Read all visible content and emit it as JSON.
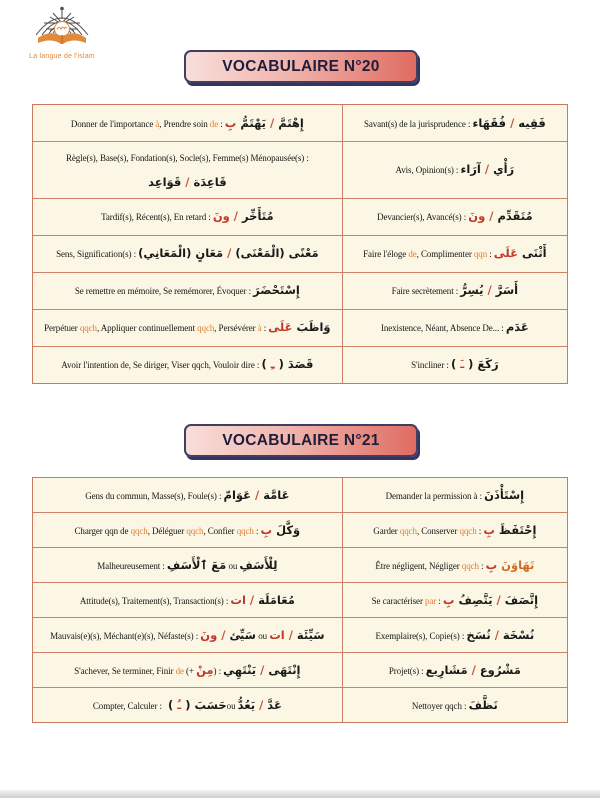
{
  "logo": {
    "caption": "La langue de l'islam"
  },
  "banners": [
    {
      "label": "VOCABULAIRE N°20"
    },
    {
      "label": "VOCABULAIRE N°21"
    }
  ],
  "colors": {
    "banner_gradient_start": "#f9ded9",
    "banner_gradient_end": "#e0685e",
    "banner_border": "#3f3f66",
    "table_border": "#c9795d",
    "cell_background": "#fbf7e4",
    "french_accent_orange": "#dd7e3b",
    "arabic_red": "#c0392b",
    "logo_orange": "#e08a3c"
  },
  "tables": [
    {
      "title_ref": "VOCABULAIRE N°20",
      "rows": [
        {
          "left": [
            {
              "t": "Donner de l'importance ",
              "s": "fr"
            },
            {
              "t": "à",
              "s": "or"
            },
            {
              "t": ", Prendre soin ",
              "s": "fr"
            },
            {
              "t": "de",
              "s": "or"
            },
            {
              "t": " : ",
              "s": "fr"
            },
            {
              "run": [
                {
                  "t": "إِهْتَمَّ",
                  "s": "ar"
                },
                {
                  "t": " / ",
                  "s": "sep"
                },
                {
                  "t": "يَهْتَمُّ ",
                  "s": "ar"
                },
                {
                  "t": "بِ",
                  "s": "arr"
                }
              ]
            }
          ],
          "right": [
            {
              "t": "Savant(s) de la jurisprudence : ",
              "s": "fr"
            },
            {
              "run": [
                {
                  "t": "فَقِيه",
                  "s": "ar"
                },
                {
                  "t": " / ",
                  "s": "sep"
                },
                {
                  "t": "فُقَهَاء",
                  "s": "ar"
                }
              ]
            }
          ]
        },
        {
          "left": [
            {
              "t": "Règle(s), Base(s), Fondation(s), Socle(s), Femme(s) Ménopausée(s) :",
              "s": "fr"
            },
            {
              "br": true
            },
            {
              "run": [
                {
                  "t": "قَاعِدَة",
                  "s": "ar"
                },
                {
                  "t": " / ",
                  "s": "sep"
                },
                {
                  "t": "قَوَاعِد",
                  "s": "ar"
                }
              ]
            }
          ],
          "right": [
            {
              "t": "Avis, Opinion(s) : ",
              "s": "fr"
            },
            {
              "run": [
                {
                  "t": "رَأْي",
                  "s": "ar"
                },
                {
                  "t": " / ",
                  "s": "sep"
                },
                {
                  "t": "آرَاء",
                  "s": "ar"
                }
              ]
            }
          ]
        },
        {
          "left": [
            {
              "t": "Tardif(s), Récent(s), En retard : ",
              "s": "fr"
            },
            {
              "run": [
                {
                  "t": "مُتَأَخِّر",
                  "s": "ar"
                },
                {
                  "t": " / ",
                  "s": "sep"
                },
                {
                  "t": "ونَ",
                  "s": "arr"
                }
              ]
            }
          ],
          "right": [
            {
              "t": "Devancier(s), Avancé(s) : ",
              "s": "fr"
            },
            {
              "run": [
                {
                  "t": "مُتَقَدِّم",
                  "s": "ar"
                },
                {
                  "t": " / ",
                  "s": "sep"
                },
                {
                  "t": "ونَ",
                  "s": "arr"
                }
              ]
            }
          ]
        },
        {
          "left": [
            {
              "t": "Sens, Signification(s) : ",
              "s": "fr"
            },
            {
              "run": [
                {
                  "t": "مَعْنًى (الْمَعْنَى)",
                  "s": "ar"
                },
                {
                  "t": " / ",
                  "s": "sep"
                },
                {
                  "t": "مَعَانٍ (الْمَعَانِي)",
                  "s": "ar"
                }
              ]
            }
          ],
          "right": [
            {
              "t": "Faire l'éloge ",
              "s": "fr"
            },
            {
              "t": "de",
              "s": "or"
            },
            {
              "t": ", Complimenter ",
              "s": "fr"
            },
            {
              "t": "qqn",
              "s": "or"
            },
            {
              "t": " : ",
              "s": "fr"
            },
            {
              "run": [
                {
                  "t": "أَثْنَى ",
                  "s": "ar"
                },
                {
                  "t": "عَلَى",
                  "s": "arr"
                }
              ]
            }
          ]
        },
        {
          "left": [
            {
              "t": "Se remettre en mémoire, Se remémorer, Évoquer : ",
              "s": "fr"
            },
            {
              "run": [
                {
                  "t": "إِسْتَحْضَرَ",
                  "s": "ar"
                }
              ]
            }
          ],
          "right": [
            {
              "t": "Faire secrètement : ",
              "s": "fr"
            },
            {
              "run": [
                {
                  "t": "أَسَرَّ",
                  "s": "ar"
                },
                {
                  "t": " / ",
                  "s": "sep"
                },
                {
                  "t": "يُسِرُّ",
                  "s": "ar"
                }
              ]
            }
          ]
        },
        {
          "left": [
            {
              "t": "Perpétuer ",
              "s": "fr"
            },
            {
              "t": "qqch",
              "s": "or"
            },
            {
              "t": ", Appliquer continuellement ",
              "s": "fr"
            },
            {
              "t": "qqch",
              "s": "or"
            },
            {
              "t": ", Persévérer ",
              "s": "fr"
            },
            {
              "t": "à",
              "s": "or"
            },
            {
              "t": " : ",
              "s": "fr"
            },
            {
              "run": [
                {
                  "t": "وَاظَبَ ",
                  "s": "ar"
                },
                {
                  "t": "عَلَى",
                  "s": "arr"
                }
              ]
            }
          ],
          "right": [
            {
              "t": "Inexistence, Néant, Absence De... : ",
              "s": "fr"
            },
            {
              "run": [
                {
                  "t": "عَدَم",
                  "s": "ar"
                }
              ]
            }
          ]
        },
        {
          "left": [
            {
              "t": "Avoir l'intention de, Se diriger, Viser qqch, Vouloir dire : ",
              "s": "fr"
            },
            {
              "run": [
                {
                  "t": "قَصَدَ",
                  "s": "ar"
                },
                {
                  "t": " ( ",
                  "s": "ar"
                },
                {
                  "t": "ـِ",
                  "s": "arr"
                },
                {
                  "t": " ) ",
                  "s": "ar"
                }
              ]
            }
          ],
          "right": [
            {
              "t": "S'incliner : ",
              "s": "fr"
            },
            {
              "run": [
                {
                  "t": "رَكَعَ",
                  "s": "ar"
                },
                {
                  "t": " ( ",
                  "s": "ar"
                },
                {
                  "t": "ـَ",
                  "s": "arr"
                },
                {
                  "t": " ) ",
                  "s": "ar"
                }
              ]
            }
          ]
        }
      ]
    },
    {
      "title_ref": "VOCABULAIRE N°21",
      "rows": [
        {
          "left": [
            {
              "t": "Gens du commun, Masse(s), Foule(s) : ",
              "s": "fr"
            },
            {
              "run": [
                {
                  "t": "عَامَّة",
                  "s": "ar"
                },
                {
                  "t": " / ",
                  "s": "sep"
                },
                {
                  "t": "عَوَامّ",
                  "s": "ar"
                }
              ]
            }
          ],
          "right": [
            {
              "t": "Demander la permission à : ",
              "s": "fr"
            },
            {
              "run": [
                {
                  "t": "إِسْتَأْذَنَ",
                  "s": "ar"
                }
              ]
            }
          ]
        },
        {
          "left": [
            {
              "t": "Charger qqn de ",
              "s": "fr"
            },
            {
              "t": "qqch",
              "s": "or"
            },
            {
              "t": ", Déléguer ",
              "s": "fr"
            },
            {
              "t": "qqch",
              "s": "or"
            },
            {
              "t": ", Confier ",
              "s": "fr"
            },
            {
              "t": "qqch",
              "s": "or"
            },
            {
              "t": " : ",
              "s": "fr"
            },
            {
              "run": [
                {
                  "t": "وَكَّلَ ",
                  "s": "ar"
                },
                {
                  "t": "بِ",
                  "s": "arr"
                }
              ]
            }
          ],
          "right": [
            {
              "t": "Garder ",
              "s": "fr"
            },
            {
              "t": "qqch",
              "s": "or"
            },
            {
              "t": ", Conserver ",
              "s": "fr"
            },
            {
              "t": "qqch",
              "s": "or"
            },
            {
              "t": " : ",
              "s": "fr"
            },
            {
              "run": [
                {
                  "t": "إِحْتَفَظَ ",
                  "s": "ar"
                },
                {
                  "t": "بِ",
                  "s": "arr"
                }
              ]
            }
          ]
        },
        {
          "left": [
            {
              "t": "Malheureusement : ",
              "s": "fr"
            },
            {
              "run": [
                {
                  "t": "مَعَ ٱلْأَسَفِ",
                  "s": "ar"
                }
              ]
            },
            {
              "t": " ou ",
              "s": "fr"
            },
            {
              "run": [
                {
                  "t": "لِلْأَسَفِ",
                  "s": "ar"
                }
              ]
            }
          ],
          "right": [
            {
              "t": "Être négligent, Négliger ",
              "s": "fr"
            },
            {
              "t": "qqch",
              "s": "or"
            },
            {
              "t": " : ",
              "s": "fr"
            },
            {
              "run": [
                {
                  "t": "تَهَاوَنَ ",
                  "s": "aro"
                },
                {
                  "t": "بِ",
                  "s": "arr"
                }
              ]
            }
          ]
        },
        {
          "left": [
            {
              "t": "Attitude(s), Traitement(s), Transaction(s) : ",
              "s": "fr"
            },
            {
              "run": [
                {
                  "t": "مُعَامَلَة",
                  "s": "ar"
                },
                {
                  "t": " / ",
                  "s": "sep"
                },
                {
                  "t": "ات",
                  "s": "arr"
                }
              ]
            }
          ],
          "right": [
            {
              "t": "Se caractériser ",
              "s": "fr"
            },
            {
              "t": "par",
              "s": "or"
            },
            {
              "t": " : ",
              "s": "fr"
            },
            {
              "run": [
                {
                  "t": "إِتَّصَفَ",
                  "s": "ar"
                },
                {
                  "t": " / ",
                  "s": "sep"
                },
                {
                  "t": "يَتَّصِفُ ",
                  "s": "ar"
                },
                {
                  "t": "بِ",
                  "s": "arr"
                }
              ]
            }
          ]
        },
        {
          "left": [
            {
              "t": "Mauvais(e)(s), Méchant(e)(s), Néfaste(s) : ",
              "s": "fr"
            },
            {
              "run": [
                {
                  "t": "سَيِّئ",
                  "s": "ar"
                },
                {
                  "t": " / ",
                  "s": "sep"
                },
                {
                  "t": "ونَ",
                  "s": "arr"
                }
              ]
            },
            {
              "t": " ou ",
              "s": "fr"
            },
            {
              "run": [
                {
                  "t": "سَيِّئَة",
                  "s": "ar"
                },
                {
                  "t": " / ",
                  "s": "sep"
                },
                {
                  "t": "ات",
                  "s": "arr"
                }
              ]
            }
          ],
          "right": [
            {
              "t": "Exemplaire(s), Copie(s) : ",
              "s": "fr"
            },
            {
              "run": [
                {
                  "t": "نُسْخَة",
                  "s": "ar"
                },
                {
                  "t": " / ",
                  "s": "sep"
                },
                {
                  "t": "نُسَخ",
                  "s": "ar"
                }
              ]
            }
          ]
        },
        {
          "left": [
            {
              "t": "S'achever, Se terminer, Finir ",
              "s": "fr"
            },
            {
              "t": "de",
              "s": "or"
            },
            {
              "t": " (+ ",
              "s": "fr"
            },
            {
              "run": [
                {
                  "t": "مِنْ",
                  "s": "arr"
                }
              ]
            },
            {
              "t": ") : ",
              "s": "fr"
            },
            {
              "run": [
                {
                  "t": "إِنْتَهَى",
                  "s": "ar"
                },
                {
                  "t": " / ",
                  "s": "sep"
                },
                {
                  "t": "يَنْتَهِي",
                  "s": "ar"
                }
              ]
            }
          ],
          "right": [
            {
              "t": "Projet(s) : ",
              "s": "fr"
            },
            {
              "run": [
                {
                  "t": "مَشْرُوع",
                  "s": "ar"
                },
                {
                  "t": " / ",
                  "s": "sep"
                },
                {
                  "t": "مَشَارِيع",
                  "s": "ar"
                }
              ]
            }
          ]
        },
        {
          "left": [
            {
              "t": "Compter, Calculer : ",
              "s": "fr"
            },
            {
              "run": [
                {
                  "t": "حَسَبَ",
                  "s": "ar"
                },
                {
                  "t": " ( ",
                  "s": "ar"
                },
                {
                  "t": "ـُ",
                  "s": "arr"
                },
                {
                  "t": " ) ",
                  "s": "ar"
                }
              ]
            },
            {
              "t": " ou ",
              "s": "fr"
            },
            {
              "run": [
                {
                  "t": "عَدَّ",
                  "s": "ar"
                },
                {
                  "t": " / ",
                  "s": "sep"
                },
                {
                  "t": "يَعُدُّ",
                  "s": "ar"
                }
              ]
            }
          ],
          "right": [
            {
              "t": "Nettoyer qqch : ",
              "s": "fr"
            },
            {
              "run": [
                {
                  "t": "نَظَّفَ",
                  "s": "ar"
                }
              ]
            }
          ]
        }
      ]
    }
  ]
}
